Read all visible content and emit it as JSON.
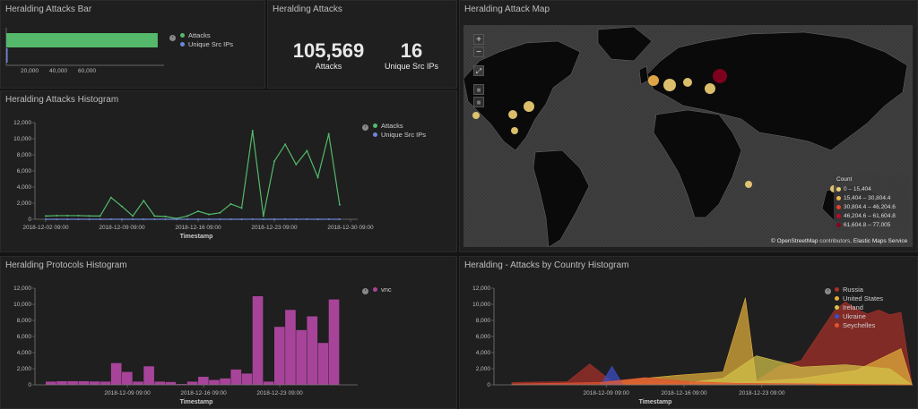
{
  "panels": {
    "bar": {
      "title": "Heralding Attacks Bar"
    },
    "metric": {
      "title": "Heralding Attacks"
    },
    "map": {
      "title": "Heralding Attack Map"
    },
    "histogram": {
      "title": "Heralding Attacks Histogram"
    },
    "protocols": {
      "title": "Heralding Protocols Histogram"
    },
    "country": {
      "title": "Heralding - Attacks by Country Histogram"
    }
  },
  "metrics": [
    {
      "value": "105,569",
      "label": "Attacks"
    },
    {
      "value": "16",
      "label": "Unique Src IPs"
    }
  ],
  "map": {
    "zoom_in": "+",
    "zoom_out": "−",
    "legend_title": "Count",
    "legend": [
      {
        "label": "0 – 15,404",
        "color": "#f1d277"
      },
      {
        "label": "15,404 – 30,804.4",
        "color": "#f3b54b"
      },
      {
        "label": "30,804.4 – 46,204.6",
        "color": "#e0412b"
      },
      {
        "label": "46,204.6 – 61,604.8",
        "color": "#c0082a"
      },
      {
        "label": "61,604.8 – 77,005",
        "color": "#8a0021"
      }
    ],
    "attribution_osm": "© OpenStreetMap",
    "attribution_mid": " contributors, ",
    "attribution_ems": "Elastic Maps Service"
  },
  "colors": {
    "attacks": "#54b96a",
    "unique": "#6f87d8",
    "vnc": "#a7449a"
  },
  "chart_data": [
    {
      "type": "bar",
      "orientation": "horizontal",
      "series": [
        {
          "name": "Attacks",
          "values": [
            105569
          ]
        },
        {
          "name": "Unique Src IPs",
          "values": [
            16
          ]
        }
      ],
      "xticks": [
        "20,000",
        "40,000",
        "60,000"
      ],
      "xlim": [
        0,
        110000
      ]
    },
    {
      "type": "line",
      "xlabel": "Timestamp",
      "x": [
        "2018-12-02",
        "2018-12-03",
        "2018-12-04",
        "2018-12-05",
        "2018-12-06",
        "2018-12-07",
        "2018-12-08",
        "2018-12-09",
        "2018-12-10",
        "2018-12-11",
        "2018-12-12",
        "2018-12-13",
        "2018-12-14",
        "2018-12-15",
        "2018-12-16",
        "2018-12-17",
        "2018-12-18",
        "2018-12-19",
        "2018-12-20",
        "2018-12-21",
        "2018-12-22",
        "2018-12-23",
        "2018-12-24",
        "2018-12-25",
        "2018-12-26",
        "2018-12-27",
        "2018-12-28",
        "2018-12-29",
        "2018-12-30"
      ],
      "xticks": [
        "2018-12-02 09:00",
        "2018-12-09 09:00",
        "2018-12-16 09:00",
        "2018-12-23 09:00",
        "2018-12-30 09:00"
      ],
      "yticks": [
        "0",
        "2,000",
        "4,000",
        "6,000",
        "8,000",
        "10,000",
        "12,000"
      ],
      "ylim": [
        0,
        12000
      ],
      "series": [
        {
          "name": "Attacks",
          "values": [
            400,
            450,
            450,
            450,
            420,
            400,
            2700,
            1600,
            400,
            2300,
            400,
            350,
            100,
            400,
            1000,
            600,
            800,
            1900,
            1400,
            11000,
            400,
            7200,
            9300,
            6800,
            8500,
            5200,
            10600,
            1800,
            null
          ]
        },
        {
          "name": "Unique Src IPs",
          "values": [
            2,
            2,
            3,
            2,
            2,
            3,
            4,
            3,
            2,
            3,
            2,
            2,
            1,
            2,
            3,
            2,
            3,
            4,
            3,
            5,
            2,
            4,
            5,
            4,
            5,
            3,
            6,
            2,
            null
          ]
        }
      ]
    },
    {
      "type": "bar",
      "xlabel": "Timestamp",
      "xticks": [
        "2018-12-09 09:00",
        "2018-12-16 09:00",
        "2018-12-23 09:00"
      ],
      "yticks": [
        "0",
        "2,000",
        "4,000",
        "6,000",
        "8,000",
        "10,000",
        "12,000"
      ],
      "ylim": [
        0,
        12000
      ],
      "series": [
        {
          "name": "vnc",
          "values": [
            400,
            450,
            450,
            450,
            420,
            400,
            2700,
            1600,
            400,
            2300,
            400,
            350,
            100,
            400,
            1000,
            600,
            800,
            1900,
            1400,
            11000,
            400,
            7200,
            9300,
            6800,
            8500,
            5200,
            10600
          ]
        }
      ]
    },
    {
      "type": "area",
      "xlabel": "Timestamp",
      "xticks": [
        "2018-12-09 09:00",
        "2018-12-16 09:00",
        "2018-12-23 09:00"
      ],
      "yticks": [
        "0",
        "2,000",
        "4,000",
        "6,000",
        "8,000",
        "10,000",
        "12,000"
      ],
      "ylim": [
        0,
        12000
      ],
      "series": [
        {
          "name": "Russia",
          "color": "#a8302b"
        },
        {
          "name": "United States",
          "color": "#e2b03b"
        },
        {
          "name": "Ireland",
          "color": "#d2c24a"
        },
        {
          "name": "Ukraine",
          "color": "#3b4fc9"
        },
        {
          "name": "Seychelles",
          "color": "#e3532f"
        }
      ]
    }
  ]
}
